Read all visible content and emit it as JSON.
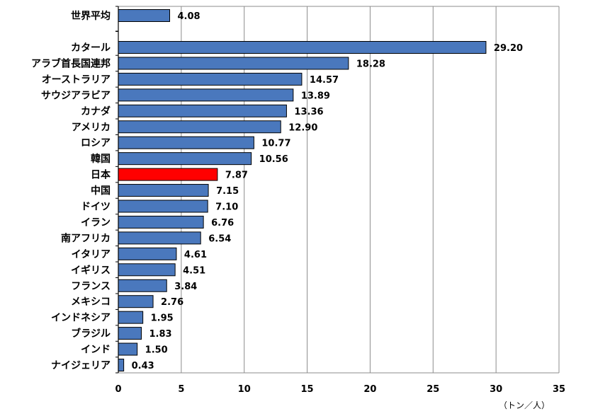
{
  "chart_data": {
    "type": "bar",
    "orientation": "horizontal",
    "categories": [
      "世界平均",
      "カタール",
      "アラブ首長国連邦",
      "オーストラリア",
      "サウジアラビア",
      "カナダ",
      "アメリカ",
      "ロシア",
      "韓国",
      "日本",
      "中国",
      "ドイツ",
      "イラン",
      "南アフリカ",
      "イタリア",
      "イギリス",
      "フランス",
      "メキシコ",
      "インドネシア",
      "ブラジル",
      "インド",
      "ナイジェリア"
    ],
    "values": [
      4.08,
      29.2,
      18.28,
      14.57,
      13.89,
      13.36,
      12.9,
      10.77,
      10.56,
      7.87,
      7.15,
      7.1,
      6.76,
      6.54,
      4.61,
      4.51,
      3.84,
      2.76,
      1.95,
      1.83,
      1.5,
      0.43
    ],
    "value_labels": [
      "4.08",
      "29.20",
      "18.28",
      "14.57",
      "13.89",
      "13.36",
      "12.90",
      "10.77",
      "10.56",
      "7.87",
      "7.15",
      "7.10",
      "6.76",
      "6.54",
      "4.61",
      "4.51",
      "3.84",
      "2.76",
      "1.95",
      "1.83",
      "1.50",
      "0.43"
    ],
    "highlight": "日本",
    "xlim": [
      0,
      35
    ],
    "xticks": [
      "0",
      "5",
      "10",
      "15",
      "20",
      "25",
      "30",
      "35"
    ],
    "unit_label": "（トン／人）",
    "grid": "vertical",
    "colors": {
      "bar": "#4a78bd",
      "highlight": "#ff0000",
      "grid": "#8c8c8c",
      "border": "#000000"
    }
  }
}
